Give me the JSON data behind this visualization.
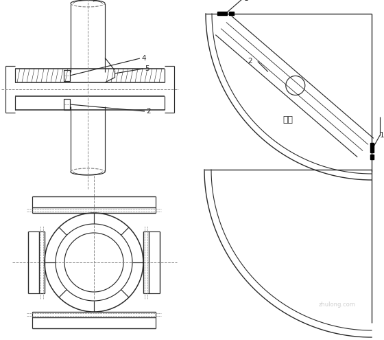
{
  "bg_color": "#ffffff",
  "lc": "#2a2a2a",
  "dc": "#888888",
  "fig_width": 5.6,
  "fig_height": 4.95,
  "label_fs": 7.5,
  "zh_fs": 9
}
